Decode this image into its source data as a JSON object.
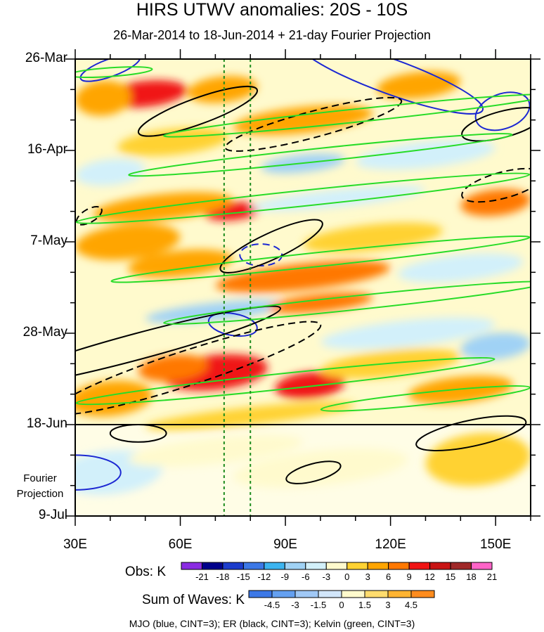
{
  "title": "HIRS UTWV anomalies: 20S - 10S",
  "subtitle": "26-Mar-2014 to 18-Jun-2014 + 21-day Fourier Projection",
  "fourier_label_line1": "Fourier",
  "fourier_label_line2": "Projection",
  "footer": "MJO (blue, CINT=3); ER (black, CINT=3); Kelvin (green, CINT=3)",
  "colorbars": {
    "obs": {
      "label": "Obs: K",
      "colors": [
        "#8a2be2",
        "#00008b",
        "#1c3ccc",
        "#3c78e6",
        "#3cb4f0",
        "#a0d2f5",
        "#d2f0fa",
        "#fffacd",
        "#ffd232",
        "#ffa500",
        "#ff7800",
        "#f01414",
        "#c81414",
        "#a02828",
        "#ff64c8"
      ],
      "ticks": [
        "-21",
        "-18",
        "-15",
        "-12",
        "-9",
        "-6",
        "-3",
        "0",
        "3",
        "6",
        "9",
        "12",
        "15",
        "18",
        "21"
      ]
    },
    "waves": {
      "label": "Sum of Waves: K",
      "colors": [
        "#3c78e6",
        "#64a0f0",
        "#a0c8f5",
        "#d2e6fa",
        "#fffacd",
        "#ffdc6e",
        "#ffb432",
        "#ff8c1e"
      ],
      "ticks": [
        "-4.5",
        "-3",
        "-1.5",
        "0",
        "1.5",
        "3",
        "4.5"
      ]
    }
  },
  "chart_data": {
    "type": "heatmap",
    "title": "HIRS UTWV anomalies: 20S - 10S",
    "subtitle": "26-Mar-2014 to 18-Jun-2014 + 21-day Fourier Projection",
    "x_ticks": [
      "30E",
      "60E",
      "90E",
      "120E",
      "150E"
    ],
    "x_tick_values": [
      30,
      60,
      90,
      120,
      150
    ],
    "xlim": [
      30,
      160
    ],
    "y_ticks": [
      "26-Mar",
      "16-Apr",
      "7-May",
      "28-May",
      "18-Jun",
      "9-Jul"
    ],
    "y_tick_days": [
      0,
      21,
      42,
      63,
      84,
      105
    ],
    "ylim_days": [
      0,
      105
    ],
    "obs_end_day": 84,
    "reference_longitudes": [
      72.5,
      80
    ],
    "anomaly_blobs": [
      {
        "lon": 50,
        "day": 8,
        "rx": 12,
        "rd": 3,
        "value": 12
      },
      {
        "lon": 38,
        "day": 9,
        "rx": 8,
        "rd": 4,
        "value": 6
      },
      {
        "lon": 72,
        "day": 7,
        "rx": 10,
        "rd": 3,
        "value": 6
      },
      {
        "lon": 128,
        "day": 6,
        "rx": 12,
        "rd": 3,
        "value": 6
      },
      {
        "lon": 95,
        "day": 14,
        "rx": 20,
        "rd": 3,
        "value": 6
      },
      {
        "lon": 58,
        "day": 19,
        "rx": 16,
        "rd": 3,
        "value": 3
      },
      {
        "lon": 130,
        "day": 22,
        "rx": 20,
        "rd": 3,
        "value": -3
      },
      {
        "lon": 95,
        "day": 24,
        "rx": 12,
        "rd": 2,
        "value": -6
      },
      {
        "lon": 40,
        "day": 26,
        "rx": 10,
        "rd": 3,
        "value": -3
      },
      {
        "lon": 75,
        "day": 35,
        "rx": 8,
        "rd": 2,
        "value": 12
      },
      {
        "lon": 55,
        "day": 34,
        "rx": 20,
        "rd": 3,
        "value": 6
      },
      {
        "lon": 150,
        "day": 33,
        "rx": 10,
        "rd": 3,
        "value": 9
      },
      {
        "lon": 105,
        "day": 32,
        "rx": 25,
        "rd": 2,
        "value": -3
      },
      {
        "lon": 45,
        "day": 42,
        "rx": 15,
        "rd": 4,
        "value": 6
      },
      {
        "lon": 115,
        "day": 41,
        "rx": 20,
        "rd": 3,
        "value": 3
      },
      {
        "lon": 95,
        "day": 50,
        "rx": 25,
        "rd": 3,
        "value": 9
      },
      {
        "lon": 60,
        "day": 47,
        "rx": 15,
        "rd": 3,
        "value": 6
      },
      {
        "lon": 140,
        "day": 48,
        "rx": 18,
        "rd": 3,
        "value": -3
      },
      {
        "lon": 70,
        "day": 58,
        "rx": 20,
        "rd": 2,
        "value": -6
      },
      {
        "lon": 125,
        "day": 63,
        "rx": 25,
        "rd": 3,
        "value": -3
      },
      {
        "lon": 100,
        "day": 56,
        "rx": 15,
        "rd": 2,
        "value": 9
      },
      {
        "lon": 70,
        "day": 72,
        "rx": 15,
        "rd": 4,
        "value": 12
      },
      {
        "lon": 58,
        "day": 71,
        "rx": 10,
        "rd": 3,
        "value": 9
      },
      {
        "lon": 97,
        "day": 75,
        "rx": 10,
        "rd": 3,
        "value": 12
      },
      {
        "lon": 120,
        "day": 70,
        "rx": 20,
        "rd": 3,
        "value": 3
      },
      {
        "lon": 40,
        "day": 78,
        "rx": 12,
        "rd": 4,
        "value": 6
      },
      {
        "lon": 140,
        "day": 76,
        "rx": 15,
        "rd": 3,
        "value": 6
      },
      {
        "lon": 80,
        "day": 82,
        "rx": 30,
        "rd": 2,
        "value": 3
      },
      {
        "lon": 150,
        "day": 66,
        "rx": 10,
        "rd": 3,
        "value": -6
      },
      {
        "lon": 40,
        "day": 95,
        "rx": 15,
        "rd": 5,
        "value": -3
      },
      {
        "lon": 100,
        "day": 94,
        "rx": 25,
        "rd": 4,
        "value": -1.5
      },
      {
        "lon": 70,
        "day": 90,
        "rx": 25,
        "rd": 3,
        "value": -1.5
      },
      {
        "lon": 145,
        "day": 92,
        "rx": 15,
        "rd": 6,
        "value": 1.5
      }
    ],
    "series": [
      {
        "name": "MJO",
        "color": "#1c28d2",
        "contours": [
          {
            "lon": 40,
            "day": 2,
            "rx": 9,
            "rd": 2,
            "rot": -20,
            "dash": false
          },
          {
            "lon": 120,
            "day": 4,
            "rx": 28,
            "rd": 4,
            "rot": 20,
            "dash": false
          },
          {
            "lon": 152,
            "day": 12,
            "rx": 8,
            "rd": 4,
            "rot": -20,
            "dash": false
          },
          {
            "lon": 83,
            "day": 45,
            "rx": 6,
            "rd": 2.5,
            "rot": 0,
            "dash": true
          },
          {
            "lon": 75,
            "day": 61,
            "rx": 7,
            "rd": 2.5,
            "rot": 10,
            "dash": false
          },
          {
            "lon": 30,
            "day": 95,
            "rx": 13,
            "rd": 4,
            "rot": 0,
            "dash": false
          }
        ]
      },
      {
        "name": "ER",
        "color": "#000000",
        "contours": [
          {
            "lon": 65,
            "day": 12,
            "rx": 18,
            "rd": 3,
            "rot": -20,
            "dash": false
          },
          {
            "lon": 98,
            "day": 15,
            "rx": 26,
            "rd": 3,
            "rot": -15,
            "dash": true
          },
          {
            "lon": 152,
            "day": 15,
            "rx": 12,
            "rd": 3,
            "rot": -15,
            "dash": false
          },
          {
            "lon": 152,
            "day": 29,
            "rx": 12,
            "rd": 3,
            "rot": -15,
            "dash": true
          },
          {
            "lon": 86,
            "day": 43,
            "rx": 16,
            "rd": 3,
            "rot": -25,
            "dash": false
          },
          {
            "lon": 48,
            "day": 66,
            "rx": 42,
            "rd": 3,
            "rot": -15,
            "dash": false
          },
          {
            "lon": 62,
            "day": 71,
            "rx": 40,
            "rd": 4,
            "rot": -18,
            "dash": true
          },
          {
            "lon": 48,
            "day": 86,
            "rx": 8,
            "rd": 2,
            "rot": 0,
            "dash": false
          },
          {
            "lon": 143,
            "day": 86,
            "rx": 16,
            "rd": 3,
            "rot": -12,
            "dash": false
          },
          {
            "lon": 98,
            "day": 95,
            "rx": 8,
            "rd": 2,
            "rot": -15,
            "dash": false
          },
          {
            "lon": 34,
            "day": 36,
            "rx": 4,
            "rd": 1.5,
            "rot": -30,
            "dash": true
          }
        ]
      },
      {
        "name": "Kelvin",
        "color": "#28dc28",
        "contours": [
          {
            "lon": 110,
            "day": 13,
            "rx": 55,
            "rd": 1.5,
            "rot": -6,
            "dash": false
          },
          {
            "lon": 100,
            "day": 22,
            "rx": 55,
            "rd": 1.5,
            "rot": -6,
            "dash": false
          },
          {
            "lon": 95,
            "day": 32,
            "rx": 65,
            "rd": 1.8,
            "rot": -6,
            "dash": false
          },
          {
            "lon": 100,
            "day": 46,
            "rx": 60,
            "rd": 1.6,
            "rot": -6,
            "dash": false
          },
          {
            "lon": 110,
            "day": 56,
            "rx": 55,
            "rd": 1.6,
            "rot": -6,
            "dash": false
          },
          {
            "lon": 90,
            "day": 74,
            "rx": 60,
            "rd": 1.8,
            "rot": -6,
            "dash": false
          },
          {
            "lon": 130,
            "day": 78,
            "rx": 30,
            "rd": 1.4,
            "rot": -6,
            "dash": false
          },
          {
            "lon": 40,
            "day": 3,
            "rx": 12,
            "rd": 1,
            "rot": -4,
            "dash": false
          }
        ]
      }
    ]
  }
}
